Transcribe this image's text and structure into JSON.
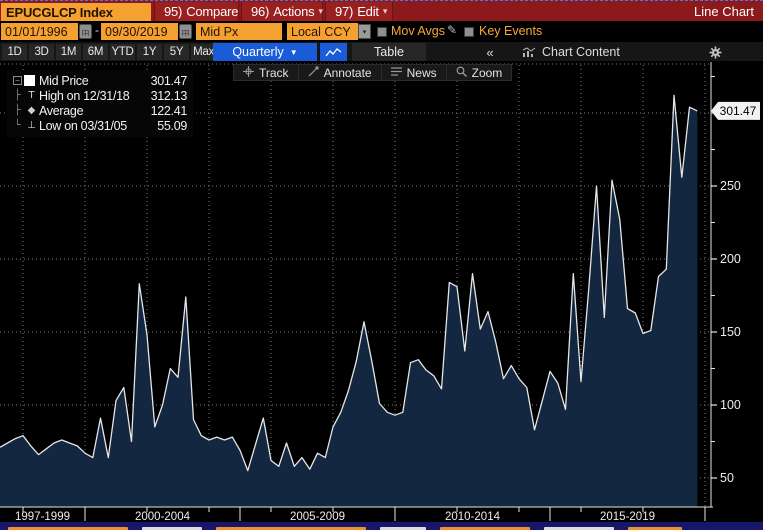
{
  "titlebar": {
    "ticker": "EPUCGLCP Index",
    "compare": {
      "key": "95)",
      "label": "Compare"
    },
    "actions": {
      "key": "96)",
      "label": "Actions"
    },
    "edit": {
      "key": "97)",
      "label": "Edit"
    },
    "mode_label": "Line Chart"
  },
  "controls": {
    "date_from": "01/01/1996",
    "date_separator": "-",
    "date_to": "09/30/2019",
    "price_field": "Mid Px",
    "currency": "Local CCY",
    "mov_avgs": "Mov Avgs",
    "key_events": "Key Events",
    "mov_avgs_checked": false,
    "key_events_checked": false
  },
  "period_bar": {
    "ranges": [
      "1D",
      "3D",
      "1M",
      "6M",
      "YTD",
      "1Y",
      "5Y",
      "Max"
    ],
    "frequency": "Quarterly",
    "table": "Table",
    "collapse": "«",
    "chart_content": "Chart Content"
  },
  "chart_toolbar": {
    "buttons": [
      "Track",
      "Annotate",
      "News",
      "Zoom"
    ]
  },
  "legend": {
    "items": [
      {
        "label": "Mid Price",
        "value": "301.47",
        "marker": "swatch"
      },
      {
        "label": "High on 12/31/18",
        "value": "312.13",
        "marker": "high"
      },
      {
        "label": "Average",
        "value": "122.41",
        "marker": "average"
      },
      {
        "label": "Low on 03/31/05",
        "value": "55.09",
        "marker": "low"
      }
    ]
  },
  "chart_data": {
    "type": "area",
    "series": [
      {
        "name": "Mid Price",
        "values": [
          71,
          74,
          77,
          79,
          72,
          66,
          70,
          74,
          76,
          74,
          72,
          67,
          64,
          91,
          64,
          103,
          112,
          75,
          183,
          148,
          85,
          100,
          125,
          119,
          174,
          90,
          79,
          76,
          78,
          76,
          78,
          69,
          55.09,
          73,
          91,
          62,
          58,
          74,
          58,
          64,
          56,
          67,
          64,
          85,
          95,
          110,
          130,
          157,
          130,
          101,
          95,
          93,
          95,
          129,
          131,
          124,
          120,
          111,
          184,
          181,
          137,
          190,
          152,
          164,
          143,
          118,
          127,
          118,
          112,
          83,
          103,
          123,
          115,
          97,
          190,
          116,
          180,
          250,
          160,
          254,
          227,
          166,
          163,
          149,
          151,
          188,
          193,
          312.13,
          256,
          304,
          301.47
        ]
      }
    ],
    "frequency": "quarterly",
    "x_start_year": 1997.25,
    "x_step_years": 0.25,
    "x_sections": [
      {
        "label": "1997-1999",
        "start": 1997,
        "end": 1999
      },
      {
        "label": "2000-2004",
        "start": 2000,
        "end": 2004
      },
      {
        "label": "2005-2009",
        "start": 2005,
        "end": 2009
      },
      {
        "label": "2010-2014",
        "start": 2010,
        "end": 2014
      },
      {
        "label": "2015-2019",
        "start": 2015,
        "end": 2019
      }
    ],
    "gridline_years": [
      1998,
      2000,
      2002,
      2004,
      2006,
      2008,
      2010,
      2012,
      2014,
      2016,
      2018,
      2020
    ],
    "y_ticks": [
      50,
      100,
      150,
      200,
      250
    ],
    "y_gridlines": [
      50,
      100,
      150,
      200,
      250,
      300
    ],
    "ylim": [
      25,
      340
    ],
    "last_price_label": "301.47",
    "stats": {
      "last": 301.47,
      "high_date": "12/31/18",
      "high": 312.13,
      "average": 122.41,
      "low_date": "03/31/05",
      "low": 55.09
    },
    "colors": {
      "line": "#e6e6e6",
      "fill": "#132740",
      "background": "#000000",
      "grid": "#787878",
      "axis": "#e6e6e6",
      "tag_bg": "#f2f2f2"
    }
  }
}
